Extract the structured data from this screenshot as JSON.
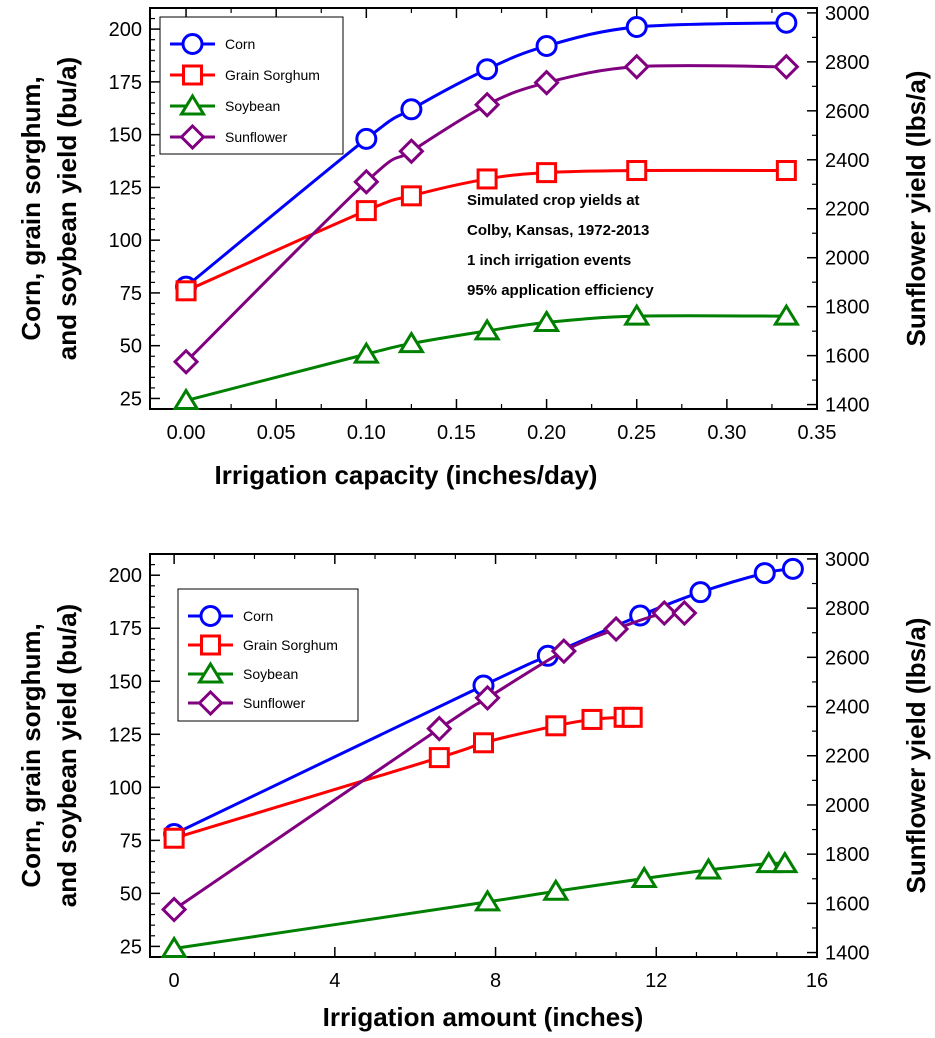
{
  "chart_data": [
    {
      "type": "line",
      "xlabel": "Irrigation capacity (inches/day)",
      "ylabel_lines": [
        "Corn, grain sorghum,",
        "and soybean yield (bu/a)"
      ],
      "y2label": "Sunflower yield (lbs/a)",
      "xlim": [
        -0.02,
        0.35
      ],
      "ylim": [
        20,
        210
      ],
      "y2lim": [
        1382,
        3020
      ],
      "xticks": [
        0.0,
        0.05,
        0.1,
        0.15,
        0.2,
        0.25,
        0.3,
        0.35
      ],
      "xtick_labels": [
        "0.00",
        "0.05",
        "0.10",
        "0.15",
        "0.20",
        "0.25",
        "0.30",
        "0.35"
      ],
      "yticks": [
        25,
        50,
        75,
        100,
        125,
        150,
        175,
        200
      ],
      "y2ticks": [
        1400,
        1600,
        1800,
        2000,
        2200,
        2400,
        2600,
        2800,
        3000
      ],
      "legend_position": "top-left",
      "grid": false,
      "annotations": [
        "Simulated crop yields at",
        "Colby, Kansas, 1972-2013",
        "1 inch irrigation events",
        "95% application efficiency"
      ],
      "series": [
        {
          "name": "Corn",
          "axis": "left",
          "marker": "circle",
          "color": "#0000ff",
          "x": [
            0,
            0.1,
            0.125,
            0.167,
            0.2,
            0.25,
            0.333
          ],
          "y": [
            78,
            148,
            162,
            181,
            192,
            201,
            203
          ]
        },
        {
          "name": "Grain Sorghum",
          "axis": "left",
          "marker": "square",
          "color": "#ff0000",
          "x": [
            0,
            0.1,
            0.125,
            0.167,
            0.2,
            0.25,
            0.333
          ],
          "y": [
            76,
            114,
            121,
            129,
            132,
            133,
            133
          ]
        },
        {
          "name": "Soybean",
          "axis": "left",
          "marker": "triangle",
          "color": "#008000",
          "x": [
            0,
            0.1,
            0.125,
            0.167,
            0.2,
            0.25,
            0.333
          ],
          "y": [
            24,
            46,
            51,
            57,
            61,
            64,
            64
          ]
        },
        {
          "name": "Sunflower",
          "axis": "right",
          "marker": "diamond",
          "color": "#800080",
          "x": [
            0,
            0.1,
            0.125,
            0.167,
            0.2,
            0.25,
            0.333
          ],
          "y": [
            1575,
            2310,
            2435,
            2625,
            2715,
            2780,
            2780
          ]
        }
      ]
    },
    {
      "type": "line",
      "xlabel": "Irrigation amount (inches)",
      "ylabel_lines": [
        "Corn, grain sorghum,",
        "and soybean yield (bu/a)"
      ],
      "y2label": "Sunflower yield (lbs/a)",
      "xlim": [
        -0.6,
        16
      ],
      "ylim": [
        20,
        210
      ],
      "y2lim": [
        1382,
        3020
      ],
      "xticks": [
        0,
        4,
        8,
        12,
        16
      ],
      "xtick_labels": [
        "0",
        "4",
        "8",
        "12",
        "16"
      ],
      "yticks": [
        25,
        50,
        75,
        100,
        125,
        150,
        175,
        200
      ],
      "y2ticks": [
        1400,
        1600,
        1800,
        2000,
        2200,
        2400,
        2600,
        2800,
        3000
      ],
      "legend_position": "top-left",
      "grid": false,
      "annotations": [],
      "series": [
        {
          "name": "Corn",
          "axis": "left",
          "marker": "circle",
          "color": "#0000ff",
          "x": [
            0,
            7.7,
            9.3,
            11.6,
            13.1,
            14.7,
            15.4
          ],
          "y": [
            78,
            148,
            162,
            181,
            192,
            201,
            203
          ]
        },
        {
          "name": "Grain Sorghum",
          "axis": "left",
          "marker": "square",
          "color": "#ff0000",
          "x": [
            0,
            6.6,
            7.7,
            9.5,
            10.4,
            11.2,
            11.4
          ],
          "y": [
            76,
            114,
            121,
            129,
            132,
            133,
            133
          ]
        },
        {
          "name": "Soybean",
          "axis": "left",
          "marker": "triangle",
          "color": "#008000",
          "x": [
            0,
            7.8,
            9.5,
            11.7,
            13.3,
            14.8,
            15.2
          ],
          "y": [
            24,
            46,
            51,
            57,
            61,
            64,
            64
          ]
        },
        {
          "name": "Sunflower",
          "axis": "right",
          "marker": "diamond",
          "color": "#800080",
          "x": [
            0,
            6.6,
            7.8,
            9.7,
            11.0,
            12.2,
            12.7
          ],
          "y": [
            1575,
            2310,
            2435,
            2625,
            2715,
            2780,
            2780
          ]
        }
      ]
    }
  ]
}
